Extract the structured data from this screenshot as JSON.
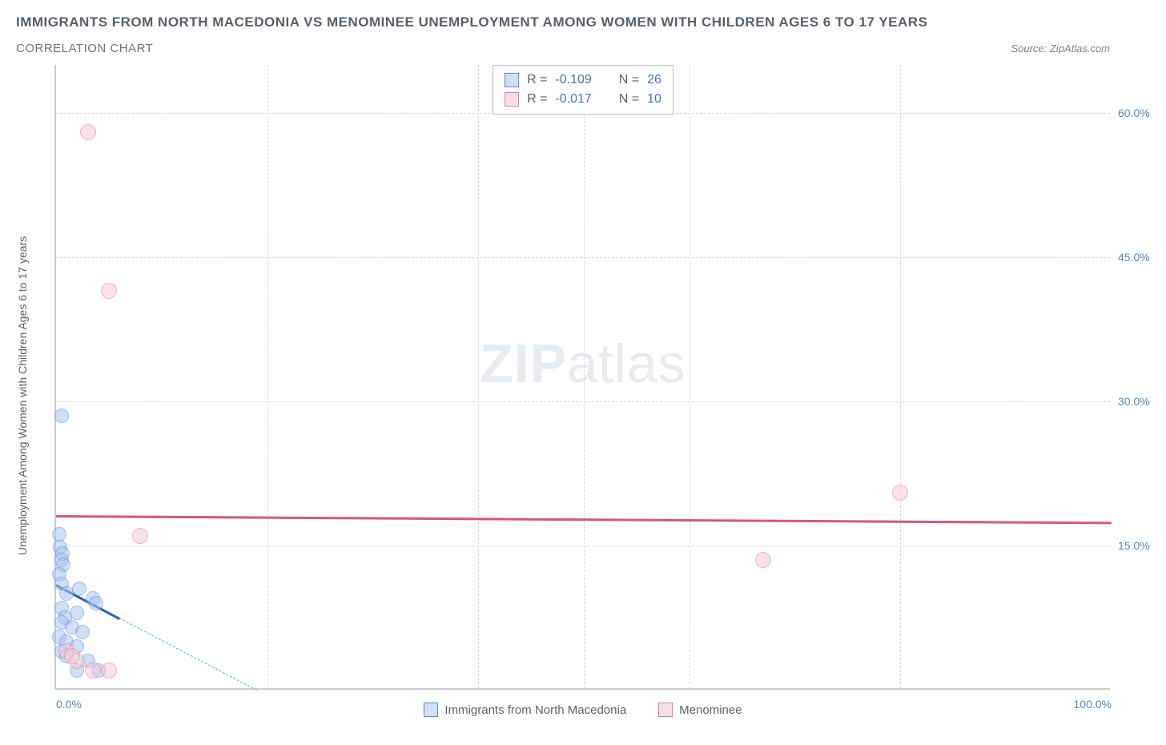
{
  "header": {
    "title_main": "IMMIGRANTS FROM NORTH MACEDONIA VS MENOMINEE UNEMPLOYMENT AMONG WOMEN WITH CHILDREN AGES 6 TO 17 YEARS",
    "title_sub": "CORRELATION CHART",
    "source_prefix": "Source: ",
    "source_name": "ZipAtlas.com"
  },
  "watermark": {
    "zip": "ZIP",
    "atlas": "atlas"
  },
  "chart": {
    "type": "scatter",
    "y_axis_title": "Unemployment Among Women with Children Ages 6 to 17 years",
    "xlim": [
      0,
      100
    ],
    "ylim": [
      0,
      65
    ],
    "x_ticks": [
      0,
      100
    ],
    "x_tick_labels": [
      "0.0%",
      "100.0%"
    ],
    "x_minor_gridlines": [
      20,
      40,
      50,
      60,
      80
    ],
    "y_ticks": [
      15,
      30,
      45,
      60
    ],
    "y_tick_labels": [
      "15.0%",
      "30.0%",
      "45.0%",
      "60.0%"
    ],
    "background_color": "#ffffff",
    "grid_color": "#d7dbe0",
    "axis_color": "#c9cdd3",
    "tick_label_color": "#5b7fd1",
    "series": [
      {
        "key": "macedonia",
        "label": "Immigrants from North Macedonia",
        "fill": "#a9c5f0",
        "stroke": "#5b8ad6",
        "swatch_fill": "#cfe0f7",
        "swatch_border": "#5b8ad6",
        "marker_radius": 9,
        "marker_opacity": 0.55,
        "R": "-0.109",
        "N": "26",
        "trend": {
          "x1": 0,
          "y1": 11,
          "x2": 6,
          "y2": 7.5,
          "width": 3,
          "dash": "none",
          "color": "#2e5fb5"
        },
        "trend_ext": {
          "x1": 6,
          "y1": 7.5,
          "x2": 19,
          "y2": 0,
          "width": 1,
          "dash": "6,5",
          "color": "#7ba0dc"
        },
        "points": [
          {
            "x": 0.5,
            "y": 28.5
          },
          {
            "x": 0.3,
            "y": 16.2
          },
          {
            "x": 0.4,
            "y": 14.8
          },
          {
            "x": 0.6,
            "y": 14.2
          },
          {
            "x": 0.5,
            "y": 13.5
          },
          {
            "x": 0.7,
            "y": 13.0
          },
          {
            "x": 0.3,
            "y": 12.0
          },
          {
            "x": 0.5,
            "y": 11.0
          },
          {
            "x": 2.2,
            "y": 10.5
          },
          {
            "x": 1.0,
            "y": 10.0
          },
          {
            "x": 3.5,
            "y": 9.5
          },
          {
            "x": 3.8,
            "y": 9.0
          },
          {
            "x": 0.5,
            "y": 8.5
          },
          {
            "x": 2.0,
            "y": 8.0
          },
          {
            "x": 0.8,
            "y": 7.5
          },
          {
            "x": 0.5,
            "y": 7.0
          },
          {
            "x": 1.5,
            "y": 6.5
          },
          {
            "x": 2.5,
            "y": 6.0
          },
          {
            "x": 0.3,
            "y": 5.5
          },
          {
            "x": 1.0,
            "y": 5.0
          },
          {
            "x": 2.0,
            "y": 4.5
          },
          {
            "x": 0.5,
            "y": 4.0
          },
          {
            "x": 1.0,
            "y": 3.5
          },
          {
            "x": 3.0,
            "y": 3.0
          },
          {
            "x": 2.0,
            "y": 2.0
          },
          {
            "x": 4.0,
            "y": 2.0
          }
        ]
      },
      {
        "key": "menominee",
        "label": "Menominee",
        "fill": "#f3c9d6",
        "stroke": "#d97fa0",
        "swatch_fill": "#f7dde6",
        "swatch_border": "#d97fa0",
        "marker_radius": 10,
        "marker_opacity": 0.55,
        "R": "-0.017",
        "N": "10",
        "trend": {
          "x1": 0,
          "y1": 18.2,
          "x2": 100,
          "y2": 17.5,
          "width": 3,
          "dash": "none",
          "color": "#d9547f"
        },
        "points": [
          {
            "x": 3.0,
            "y": 58.0
          },
          {
            "x": 5.0,
            "y": 41.5
          },
          {
            "x": 80.0,
            "y": 20.5
          },
          {
            "x": 8.0,
            "y": 16.0
          },
          {
            "x": 67.0,
            "y": 13.5
          },
          {
            "x": 1.0,
            "y": 4.0
          },
          {
            "x": 2.0,
            "y": 3.0
          },
          {
            "x": 5.0,
            "y": 2.0
          },
          {
            "x": 3.5,
            "y": 2.0
          },
          {
            "x": 1.5,
            "y": 3.5
          }
        ]
      }
    ],
    "stats_box": {
      "rows": [
        {
          "swatch_series": "macedonia",
          "r_label": "R =",
          "n_label": "N ="
        },
        {
          "swatch_series": "menominee",
          "r_label": "R =",
          "n_label": "N ="
        }
      ]
    }
  }
}
